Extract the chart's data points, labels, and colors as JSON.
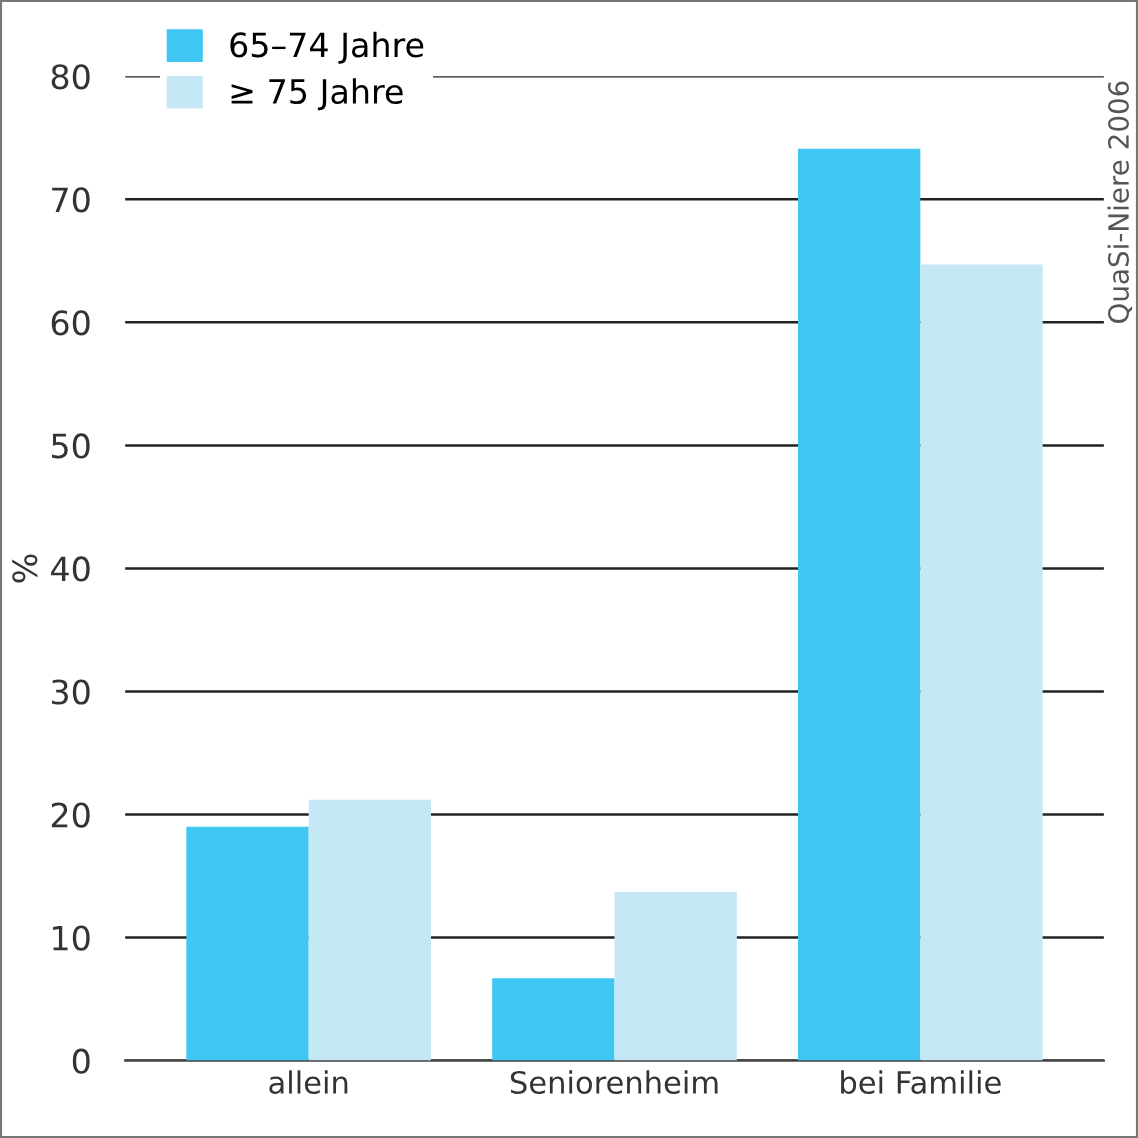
{
  "chart_data": {
    "type": "bar",
    "ylabel": "%",
    "categories": [
      "allein",
      "Seniorenheim",
      "bei Familie"
    ],
    "series": [
      {
        "name": "65–74 Jahre",
        "color": "#40c6f2",
        "values": [
          19,
          6.7,
          74.1
        ]
      },
      {
        "name": "≥ 75 Jahre",
        "color": "#c5e8f7",
        "values": [
          21.2,
          13.7,
          64.7
        ]
      }
    ],
    "ylim": [
      0,
      80
    ],
    "yticks": [
      0,
      10,
      20,
      30,
      40,
      50,
      60,
      70,
      80
    ],
    "grid": "y",
    "legend": "top left",
    "annotations": [
      "QuaSi-Niere 2006"
    ]
  }
}
